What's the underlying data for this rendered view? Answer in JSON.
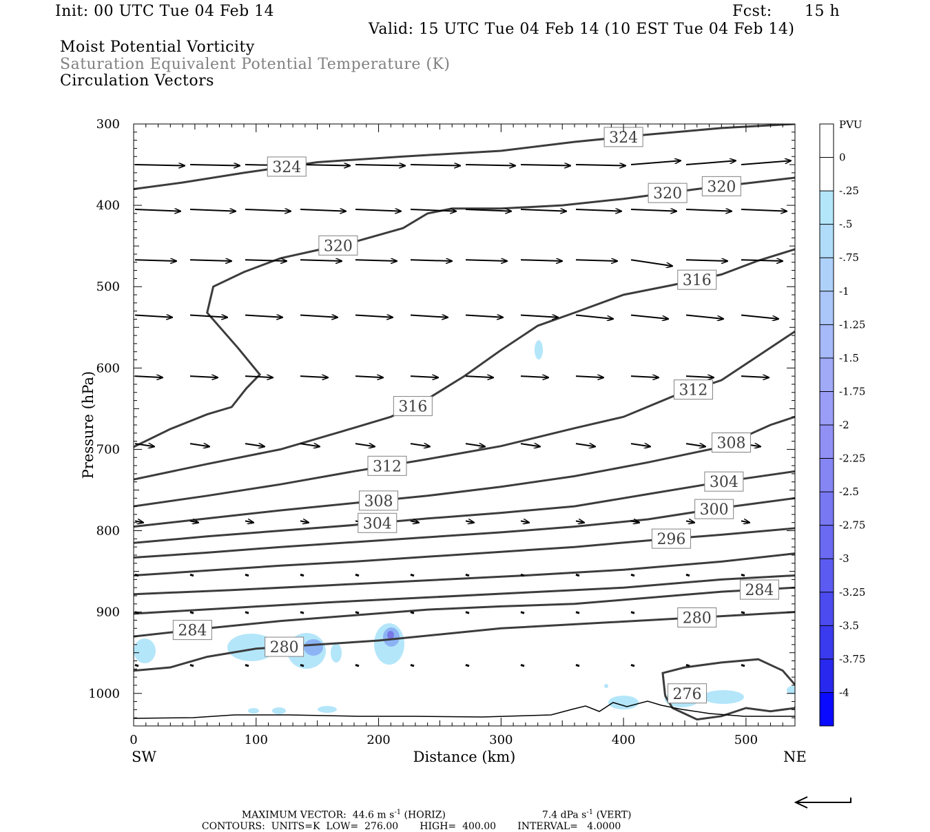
{
  "header": {
    "init": "Init: 00 UTC Tue 04 Feb 14",
    "fcst_label": "Fcst:",
    "fcst_value": "15 h",
    "valid": "Valid: 15 UTC Tue 04 Feb 14 (10 EST Tue 04 Feb 14)",
    "field1": "Moist Potential Vorticity",
    "field2": "Saturation Equivalent Potential Temperature (K)",
    "field3": "Circulation Vectors"
  },
  "colors": {
    "contour": "#3c3c3c",
    "field2_text": "#808080",
    "pv_light": "#b4e6fa",
    "pv_mid": "#8cb4f5",
    "pv_dark": "#7878e6"
  },
  "chart_data": {
    "type": "contour_cross_section",
    "xlabel": "Distance (km)",
    "ylabel": "Pressure (hPa)",
    "xlim": [
      0,
      540
    ],
    "ylim": [
      1040,
      300
    ],
    "x_ticks": [
      "0",
      "100",
      "200",
      "300",
      "400",
      "500"
    ],
    "y_ticks": [
      "300",
      "400",
      "500",
      "600",
      "700",
      "800",
      "900",
      "1000"
    ],
    "left_end_label": "SW",
    "right_end_label": "NE",
    "colorbar": {
      "unit": "PVU",
      "levels": [
        "0",
        "-.25",
        "-.5",
        "-.75",
        "-1",
        "-1.25",
        "-1.5",
        "-1.75",
        "-2",
        "-2.25",
        "-2.5",
        "-2.75",
        "-3",
        "-3.25",
        "-3.5",
        "-3.75",
        "-4"
      ],
      "colors": [
        "#ffffff",
        "#ffffff",
        "#b4e6fa",
        "#b1dcf9",
        "#aed1f9",
        "#abc6f8",
        "#a6b9f8",
        "#a0aaf7",
        "#9a9ef6",
        "#9191f5",
        "#8585f4",
        "#7878f3",
        "#6a6af2",
        "#5b5bf1",
        "#4b4bf0",
        "#3a3aef",
        "#2828ee",
        "#0a0aff"
      ]
    },
    "contours": [
      {
        "level": 324,
        "label": "324",
        "points": [
          [
            0,
            380
          ],
          [
            40,
            372
          ],
          [
            90,
            360
          ],
          [
            150,
            347
          ],
          [
            220,
            340
          ],
          [
            300,
            333
          ],
          [
            360,
            322
          ],
          [
            420,
            313
          ],
          [
            480,
            305
          ],
          [
            540,
            300
          ]
        ]
      },
      {
        "level": 320,
        "label": "320",
        "points": [
          [
            0,
            697
          ],
          [
            30,
            675
          ],
          [
            60,
            657
          ],
          [
            80,
            648
          ],
          [
            92,
            625
          ],
          [
            103,
            608
          ],
          [
            85,
            575
          ],
          [
            60,
            532
          ],
          [
            65,
            500
          ],
          [
            90,
            482
          ],
          [
            120,
            465
          ],
          [
            150,
            455
          ],
          [
            180,
            445
          ],
          [
            220,
            428
          ],
          [
            240,
            410
          ],
          [
            260,
            404
          ],
          [
            300,
            404
          ],
          [
            350,
            400
          ],
          [
            400,
            392
          ],
          [
            460,
            380
          ],
          [
            500,
            373
          ],
          [
            540,
            366
          ]
        ]
      },
      {
        "level": 316,
        "label": "316",
        "points": [
          [
            0,
            737
          ],
          [
            60,
            718
          ],
          [
            120,
            700
          ],
          [
            170,
            678
          ],
          [
            210,
            660
          ],
          [
            240,
            638
          ],
          [
            270,
            610
          ],
          [
            300,
            578
          ],
          [
            330,
            548
          ],
          [
            360,
            532
          ],
          [
            400,
            510
          ],
          [
            440,
            498
          ],
          [
            480,
            485
          ],
          [
            510,
            468
          ],
          [
            540,
            454
          ]
        ]
      },
      {
        "level": 312,
        "label": "312",
        "points": [
          [
            0,
            770
          ],
          [
            60,
            757
          ],
          [
            120,
            743
          ],
          [
            180,
            727
          ],
          [
            240,
            712
          ],
          [
            300,
            696
          ],
          [
            360,
            674
          ],
          [
            400,
            660
          ],
          [
            440,
            635
          ],
          [
            480,
            615
          ],
          [
            510,
            585
          ],
          [
            540,
            555
          ]
        ]
      },
      {
        "level": 308,
        "label": "308",
        "points": [
          [
            0,
            795
          ],
          [
            60,
            785
          ],
          [
            120,
            775
          ],
          [
            180,
            766
          ],
          [
            240,
            757
          ],
          [
            300,
            746
          ],
          [
            360,
            733
          ],
          [
            420,
            716
          ],
          [
            480,
            697
          ],
          [
            520,
            670
          ],
          [
            540,
            660
          ]
        ]
      },
      {
        "level": 304,
        "label": "304",
        "points": [
          [
            0,
            815
          ],
          [
            60,
            807
          ],
          [
            120,
            800
          ],
          [
            180,
            793
          ],
          [
            240,
            785
          ],
          [
            300,
            778
          ],
          [
            360,
            770
          ],
          [
            420,
            755
          ],
          [
            480,
            740
          ],
          [
            540,
            727
          ]
        ]
      },
      {
        "level": 300,
        "label": "300",
        "points": [
          [
            0,
            833
          ],
          [
            60,
            827
          ],
          [
            120,
            820
          ],
          [
            180,
            814
          ],
          [
            240,
            808
          ],
          [
            300,
            802
          ],
          [
            360,
            795
          ],
          [
            420,
            786
          ],
          [
            480,
            772
          ],
          [
            540,
            760
          ]
        ]
      },
      {
        "level": 296,
        "label": "296",
        "points": [
          [
            0,
            855
          ],
          [
            60,
            849
          ],
          [
            120,
            843
          ],
          [
            180,
            838
          ],
          [
            240,
            832
          ],
          [
            300,
            826
          ],
          [
            360,
            820
          ],
          [
            420,
            812
          ],
          [
            480,
            805
          ],
          [
            540,
            797
          ]
        ]
      },
      {
        "level": 292,
        "label": "",
        "points": [
          [
            0,
            878
          ],
          [
            80,
            873
          ],
          [
            160,
            867
          ],
          [
            240,
            861
          ],
          [
            320,
            855
          ],
          [
            400,
            848
          ],
          [
            480,
            838
          ],
          [
            540,
            828
          ]
        ]
      },
      {
        "level": 288,
        "label": "",
        "points": [
          [
            0,
            902
          ],
          [
            80,
            895
          ],
          [
            160,
            888
          ],
          [
            240,
            882
          ],
          [
            320,
            876
          ],
          [
            400,
            870
          ],
          [
            480,
            860
          ],
          [
            540,
            855
          ]
        ]
      },
      {
        "level": 284,
        "label": "284",
        "points": [
          [
            0,
            930
          ],
          [
            60,
            920
          ],
          [
            120,
            911
          ],
          [
            180,
            904
          ],
          [
            240,
            897
          ],
          [
            300,
            893
          ],
          [
            360,
            890
          ],
          [
            400,
            885
          ],
          [
            440,
            880
          ],
          [
            480,
            875
          ],
          [
            540,
            870
          ]
        ]
      },
      {
        "level": 280,
        "label": "280",
        "points": [
          [
            0,
            972
          ],
          [
            30,
            968
          ],
          [
            60,
            955
          ],
          [
            100,
            945
          ],
          [
            150,
            940
          ],
          [
            200,
            935
          ],
          [
            260,
            926
          ],
          [
            300,
            920
          ],
          [
            360,
            915
          ],
          [
            420,
            910
          ],
          [
            480,
            905
          ],
          [
            540,
            900
          ]
        ]
      },
      {
        "level": 276,
        "label": "276",
        "points": [
          [
            434,
            1003
          ],
          [
            432,
            975
          ],
          [
            450,
            968
          ],
          [
            480,
            962
          ],
          [
            510,
            958
          ],
          [
            530,
            972
          ],
          [
            545,
            998
          ],
          [
            540,
            1018
          ],
          [
            520,
            1022
          ],
          [
            500,
            1018
          ],
          [
            480,
            1028
          ],
          [
            460,
            1032
          ],
          [
            440,
            1018
          ],
          [
            434,
            1003
          ]
        ]
      }
    ],
    "vectors": {
      "rows_hPa": [
        350,
        405,
        467,
        535,
        610,
        693,
        788,
        854,
        900,
        965
      ],
      "cols_km": [
        0,
        45,
        90,
        135,
        180,
        225,
        270,
        315,
        360,
        405,
        450,
        495,
        540
      ]
    },
    "pv_regions_note": "Light blue negative MPV patches near 930-960 hPa at 0-200 km and near surface around 420-540 km",
    "max_vector": {
      "label": "MAXIMUM VECTOR:",
      "horiz_value": "44.6 m s",
      "horiz_unit": "(HORIZ)",
      "vert_value": "7.4 dPa s",
      "vert_unit": "(VERT)",
      "exponent": "-1"
    },
    "contour_info": {
      "label": "CONTOURS:",
      "units": "UNITS=K",
      "low_label": "LOW=",
      "low": "276.00",
      "high_label": "HIGH=",
      "high": "400.00",
      "interval_label": "INTERVAL=",
      "interval": "4.0000"
    }
  }
}
